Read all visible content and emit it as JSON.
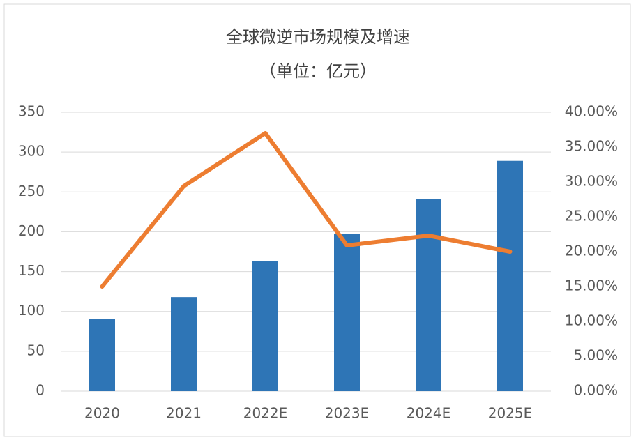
{
  "chart_data": {
    "type": "bar-line",
    "title": "全球微逆市场规模及增速",
    "subtitle": "（单位：亿元）",
    "categories": [
      "2020",
      "2021",
      "2022E",
      "2023E",
      "2024E",
      "2025E"
    ],
    "series": [
      {
        "type": "bar",
        "color": "#2e75b6",
        "values": [
          91,
          118,
          163,
          197,
          241,
          289
        ]
      },
      {
        "type": "line",
        "axis": "y2",
        "color": "#ed7d31",
        "values": [
          15.0,
          29.4,
          37.0,
          20.9,
          22.3,
          20.0
        ]
      }
    ],
    "ylim": [
      0,
      350
    ],
    "yticks": [
      0,
      50,
      100,
      150,
      200,
      250,
      300,
      350
    ],
    "y2lim": [
      0,
      40
    ],
    "y2ticks": [
      {
        "value": 0,
        "label": "0.00%"
      },
      {
        "value": 5,
        "label": "5.00%"
      },
      {
        "value": 10,
        "label": "10.00%"
      },
      {
        "value": 15,
        "label": "15.00%"
      },
      {
        "value": 20,
        "label": "20.00%"
      },
      {
        "value": 25,
        "label": "25.00%"
      },
      {
        "value": 30,
        "label": "30.00%"
      },
      {
        "value": 35,
        "label": "35.00%"
      },
      {
        "value": 40,
        "label": "40.00%"
      }
    ],
    "grid": true
  }
}
